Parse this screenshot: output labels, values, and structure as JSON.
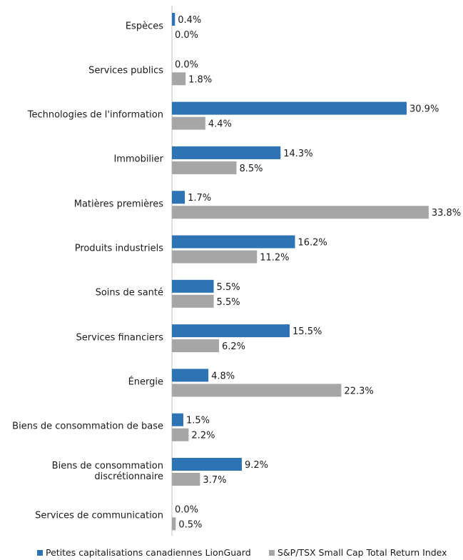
{
  "chart_data": {
    "type": "bar",
    "orientation": "horizontal",
    "categories": [
      "Espèces",
      "Services publics",
      "Technologies de l'information",
      "Immobilier",
      "Matières premières",
      "Produits industriels",
      "Soins de santé",
      "Services financiers",
      "Énergie",
      "Biens de consommation de base",
      "Biens de consommation\ndiscrétionnaire",
      "Services de communication"
    ],
    "series": [
      {
        "name": "Petites capitalisations canadiennes LionGuard",
        "color": "#2e74b5",
        "values": [
          0.4,
          0.0,
          30.9,
          14.3,
          1.7,
          16.2,
          5.5,
          15.5,
          4.8,
          1.5,
          9.2,
          0.0
        ],
        "labels": [
          "0.4%",
          "0.0%",
          "30.9%",
          "14.3%",
          "1.7%",
          "16.2%",
          "5.5%",
          "15.5%",
          "4.8%",
          "1.5%",
          "9.2%",
          "0.0%"
        ]
      },
      {
        "name": "S&P/TSX Small Cap Total Return Index",
        "color": "#a6a6a6",
        "values": [
          0.0,
          1.8,
          4.4,
          8.5,
          33.8,
          11.2,
          5.5,
          6.2,
          22.3,
          2.2,
          3.7,
          0.5
        ],
        "labels": [
          "0.0%",
          "1.8%",
          "4.4%",
          "8.5%",
          "33.8%",
          "11.2%",
          "5.5%",
          "6.2%",
          "22.3%",
          "2.2%",
          "3.7%",
          "0.5%"
        ]
      }
    ],
    "xlim": [
      0,
      40
    ],
    "grid": false,
    "legend_position": "bottom"
  }
}
